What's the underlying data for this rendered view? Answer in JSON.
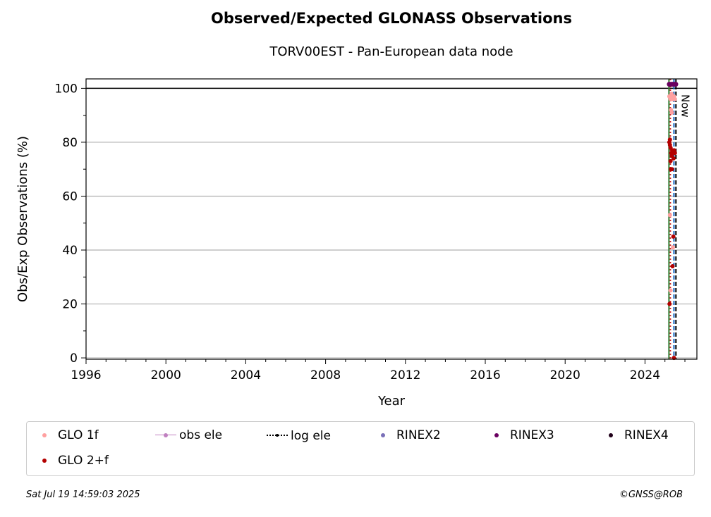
{
  "header": {
    "title": "Observed/Expected GLONASS Observations",
    "subtitle": "TORV00EST - Pan-European data node"
  },
  "chart_data": {
    "type": "scatter",
    "title": "Observed/Expected GLONASS Observations",
    "subtitle": "TORV00EST - Pan-European data node",
    "xlabel": "Year",
    "ylabel": "Obs/Exp Observations (%)",
    "xlim": [
      1996,
      2026.6
    ],
    "ylim": [
      -0.5,
      103.5
    ],
    "x_ticks": [
      1996,
      2000,
      2004,
      2008,
      2012,
      2016,
      2020,
      2024
    ],
    "y_ticks": [
      0,
      20,
      40,
      60,
      80,
      100
    ],
    "grid": "y",
    "reference_line_y": 100,
    "vertical_lines": [
      {
        "x": 2025.2,
        "color": "#2e7d32",
        "style": "solid"
      },
      {
        "x": 2025.27,
        "color": "#c62828",
        "style": "dotted"
      },
      {
        "x": 2025.45,
        "color": "#1565c0",
        "style": "dashed"
      },
      {
        "x": 2025.55,
        "color": "#000000",
        "style": "dashed"
      }
    ],
    "now_label": "Now",
    "now_x": 2025.55,
    "series": [
      {
        "name": "GLO 1f",
        "color": "#ffa0a0",
        "x": [
          2025.22,
          2025.25,
          2025.28,
          2025.3,
          2025.33,
          2025.36,
          2025.4,
          2025.43,
          2025.46,
          2025.5,
          2025.3,
          2025.35,
          2025.25,
          2025.4,
          2025.28
        ],
        "y": [
          97,
          97,
          96,
          97,
          98,
          97,
          96,
          97,
          97,
          96,
          92,
          91,
          53,
          41,
          25
        ]
      },
      {
        "name": "GLO 2+f",
        "color": "#b30000",
        "x": [
          2025.22,
          2025.25,
          2025.28,
          2025.31,
          2025.34,
          2025.37,
          2025.4,
          2025.43,
          2025.46,
          2025.5,
          2025.25,
          2025.28,
          2025.3,
          2025.35,
          2025.38,
          2025.42,
          2025.23,
          2025.45
        ],
        "y": [
          80,
          81,
          78,
          76,
          75,
          77,
          76,
          74,
          77,
          76,
          79,
          73,
          70,
          70,
          34,
          45,
          20,
          0
        ]
      },
      {
        "name": "obs ele",
        "color": "#c080c0",
        "x": [],
        "y": []
      },
      {
        "name": "log ele",
        "color": "#000000",
        "x": [],
        "y": []
      },
      {
        "name": "RINEX2",
        "color": "#7a70b8",
        "x": [],
        "y": []
      },
      {
        "name": "RINEX3",
        "color": "#6a0060",
        "x": [
          2025.22,
          2025.3,
          2025.38,
          2025.46,
          2025.54
        ],
        "y": [
          101.5,
          101.5,
          101.5,
          101.5,
          101.5
        ]
      },
      {
        "name": "RINEX4",
        "color": "#20001a",
        "x": [],
        "y": []
      }
    ],
    "legend_placement": "bottom"
  },
  "legend": {
    "items": [
      {
        "label": "GLO 1f",
        "color": "#ffa0a0",
        "kind": "dot"
      },
      {
        "label": "obs ele",
        "color": "#c080c0",
        "kind": "line-dot"
      },
      {
        "label": "log ele",
        "color": "#000000",
        "kind": "dotted-line"
      },
      {
        "label": "RINEX2",
        "color": "#7a70b8",
        "kind": "dot"
      },
      {
        "label": "RINEX3",
        "color": "#6a0060",
        "kind": "dot"
      },
      {
        "label": "RINEX4",
        "color": "#20001a",
        "kind": "dot"
      },
      {
        "label": "GLO 2+f",
        "color": "#b30000",
        "kind": "dot"
      }
    ]
  },
  "footer": {
    "timestamp": "Sat Jul 19 14:59:03 2025",
    "credit": "©GNSS@ROB"
  }
}
